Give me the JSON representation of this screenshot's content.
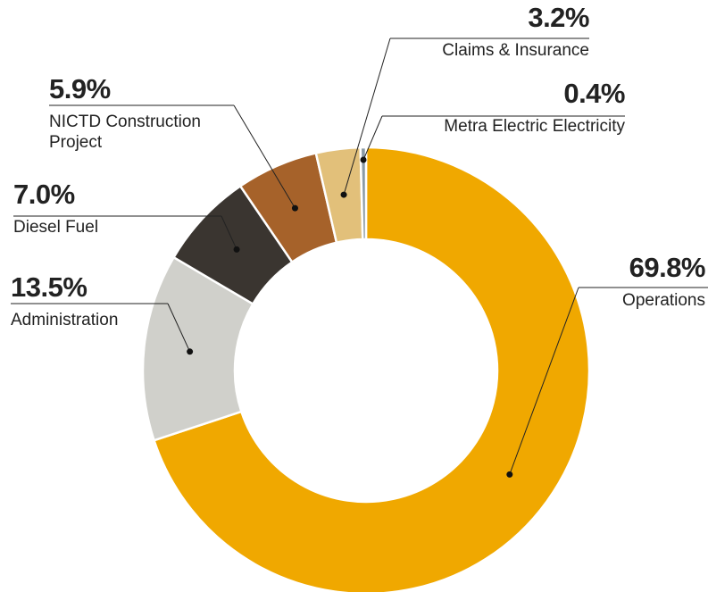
{
  "chart_data": {
    "type": "donut",
    "categories": [
      "Operations",
      "Administration",
      "Diesel Fuel",
      "NICTD Construction Project",
      "Claims & Insurance",
      "Metra Electric Electricity"
    ],
    "values": [
      69.8,
      13.5,
      7.0,
      5.9,
      3.2,
      0.4
    ],
    "value_labels": [
      "69.8%",
      "13.5%",
      "7.0%",
      "5.9%",
      "3.2%",
      "0.4%"
    ],
    "colors": [
      "#f0a800",
      "#d0d0cb",
      "#3a3530",
      "#a6622a",
      "#e2c07a",
      "#8a9aa6"
    ]
  }
}
